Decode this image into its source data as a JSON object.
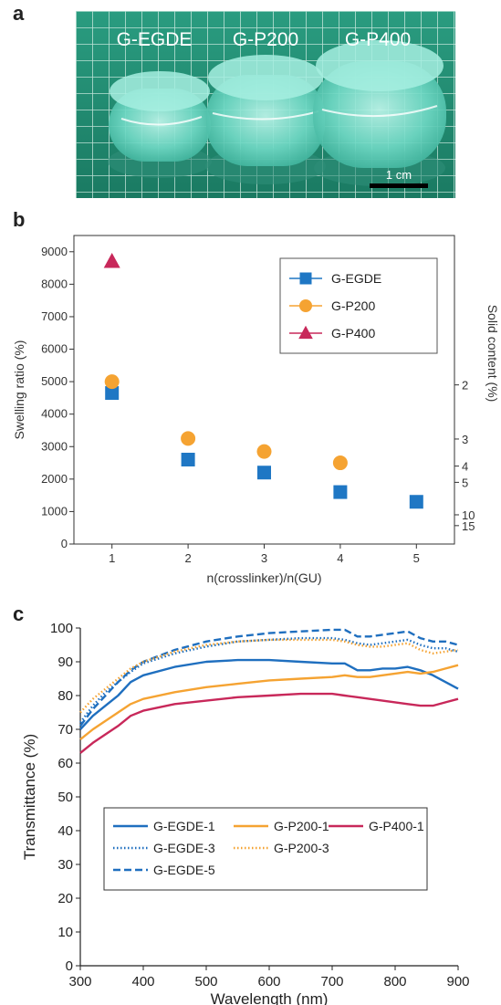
{
  "panels": {
    "a": "a",
    "b": "b",
    "c": "c"
  },
  "photo": {
    "labels": [
      "G-EGDE",
      "G-P200",
      "G-P400"
    ],
    "scale_label": "1 cm",
    "colors": {
      "grid": "#1f8f72",
      "line": "#e6f3ee",
      "gel": "#7fe0d0"
    }
  },
  "chart_data": [
    {
      "type": "scatter",
      "xlabel": "n(crosslinker)/n(GU)",
      "ylabel": "Swelling ratio (%)",
      "y2label": "Solid content (%)",
      "xlim": [
        0.5,
        5.5
      ],
      "ylim": [
        0,
        9500
      ],
      "xticks": [
        1,
        2,
        3,
        4,
        5
      ],
      "yticks": [
        0,
        1000,
        2000,
        3000,
        4000,
        5000,
        6000,
        7000,
        8000,
        9000
      ],
      "y2ticks": [
        2,
        3,
        4,
        5,
        10,
        15
      ],
      "legend_position": "top-right",
      "grid": false,
      "series": [
        {
          "name": "G-EGDE",
          "marker": "square",
          "color": "#1f77c4",
          "x": [
            1,
            2,
            3,
            4,
            5
          ],
          "y": [
            4650,
            2600,
            2200,
            1600,
            1300
          ]
        },
        {
          "name": "G-P200",
          "marker": "circle",
          "color": "#f5a332",
          "x": [
            1,
            2,
            3,
            4
          ],
          "y": [
            5000,
            3250,
            2850,
            2500
          ]
        },
        {
          "name": "G-P400",
          "marker": "triangle",
          "color": "#c8285a",
          "x": [
            1
          ],
          "y": [
            8700
          ]
        }
      ]
    },
    {
      "type": "line",
      "xlabel": "Wavelength (nm)",
      "ylabel": "Transmittance (%)",
      "xlim": [
        300,
        900
      ],
      "ylim": [
        0,
        100
      ],
      "xticks": [
        300,
        400,
        500,
        600,
        700,
        800,
        900
      ],
      "yticks": [
        0,
        10,
        20,
        30,
        40,
        50,
        60,
        70,
        80,
        90,
        100
      ],
      "legend_position": "lower-center",
      "grid": false,
      "x": [
        300,
        320,
        340,
        360,
        380,
        400,
        450,
        500,
        550,
        600,
        650,
        700,
        720,
        740,
        760,
        780,
        800,
        820,
        840,
        860,
        880,
        900
      ],
      "series": [
        {
          "name": "G-EGDE-1",
          "color": "#1f6fbf",
          "dash": "solid",
          "y": [
            70,
            74,
            77,
            80,
            84,
            86,
            88.5,
            90,
            90.5,
            90.5,
            90,
            89.5,
            89.5,
            87.5,
            87.5,
            88,
            88,
            88.5,
            87.5,
            86,
            84,
            82
          ]
        },
        {
          "name": "G-EGDE-3",
          "color": "#1f6fbf",
          "dash": "dotted",
          "y": [
            72,
            77,
            81,
            84,
            87,
            89.5,
            92.5,
            94.5,
            96,
            96.5,
            97,
            97,
            96.5,
            95.5,
            95,
            95.5,
            96,
            96.5,
            95,
            94,
            94,
            93
          ]
        },
        {
          "name": "G-EGDE-5",
          "color": "#1f6fbf",
          "dash": "dashed",
          "y": [
            71,
            76,
            80,
            84,
            87.5,
            90,
            93.5,
            96,
            97.5,
            98.5,
            99,
            99.5,
            99.5,
            97.5,
            97.5,
            98,
            98.5,
            99,
            97,
            96,
            96,
            95
          ]
        },
        {
          "name": "G-P200-1",
          "color": "#f5a332",
          "dash": "solid",
          "y": [
            67,
            70,
            72.5,
            75,
            77.5,
            79,
            81,
            82.5,
            83.5,
            84.5,
            85,
            85.5,
            86,
            85.5,
            85.5,
            86,
            86.5,
            87,
            86.5,
            87,
            88,
            89
          ]
        },
        {
          "name": "G-P200-3",
          "color": "#f5a332",
          "dash": "dotted",
          "y": [
            75,
            79,
            82,
            85,
            88,
            90,
            93,
            95,
            96,
            96.5,
            96.5,
            96.5,
            96,
            95,
            94.5,
            94.5,
            95,
            95.5,
            93.5,
            92.5,
            93,
            93.5
          ]
        },
        {
          "name": "G-P400-1",
          "color": "#c8285a",
          "dash": "solid",
          "y": [
            63,
            66,
            68.5,
            71,
            74,
            75.5,
            77.5,
            78.5,
            79.5,
            80,
            80.5,
            80.5,
            80,
            79.5,
            79,
            78.5,
            78,
            77.5,
            77,
            77,
            78,
            79
          ]
        }
      ]
    }
  ]
}
